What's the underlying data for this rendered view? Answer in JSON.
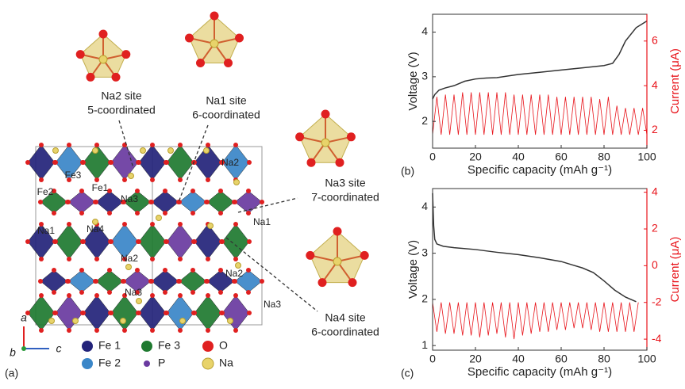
{
  "panel_a": {
    "label": "(a)",
    "sites": [
      {
        "name": "Na2 site",
        "coordination": "5-coordinated"
      },
      {
        "name": "Na1 site",
        "coordination": "6-coordinated"
      },
      {
        "name": "Na3 site",
        "coordination": "7-coordinated"
      },
      {
        "name": "Na4 site",
        "coordination": "6-coordinated"
      }
    ],
    "atom_labels": [
      "Fe3",
      "Fe1",
      "Fe2",
      "Na3",
      "Na2",
      "Na1",
      "Na4",
      "Na1",
      "Na2",
      "Na2",
      "Na3",
      "Na3"
    ],
    "axes": [
      "a",
      "b",
      "c"
    ],
    "legend": [
      "Fe 1",
      "Fe 3",
      "O",
      "Fe 2",
      "P",
      "Na"
    ]
  },
  "chart_data": [
    {
      "type": "line",
      "panel": "(b)",
      "x_label": "Specific capacity (mAh g⁻¹)",
      "y_label": "Voltage (V)",
      "y2_label": "Current (μA)",
      "xlim": [
        0,
        100
      ],
      "xticks": [
        0,
        20,
        40,
        60,
        80,
        100
      ],
      "ylim": [
        1.4,
        4.4
      ],
      "yticks": [
        2,
        3,
        4
      ],
      "y2lim": [
        1.2,
        7.2
      ],
      "y2ticks": [
        2,
        4,
        6
      ],
      "series": [
        {
          "color": "#333333",
          "x": [
            0,
            1,
            3,
            6,
            10,
            15,
            20,
            25,
            30,
            40,
            50,
            60,
            70,
            80,
            84,
            87,
            90,
            95,
            100
          ],
          "values": [
            2.5,
            2.6,
            2.7,
            2.75,
            2.8,
            2.9,
            2.95,
            2.97,
            2.98,
            3.05,
            3.1,
            3.15,
            3.2,
            3.25,
            3.3,
            3.5,
            3.8,
            4.1,
            4.25
          ]
        },
        {
          "color": "#e8141b",
          "axis": "y2",
          "x": [
            0,
            2,
            4,
            6,
            8,
            10,
            12,
            14,
            16,
            18,
            20,
            22,
            24,
            26,
            28,
            30,
            32,
            34,
            36,
            38,
            40,
            42,
            44,
            46,
            48,
            50,
            52,
            54,
            56,
            58,
            60,
            62,
            64,
            66,
            68,
            70,
            72,
            74,
            76,
            78,
            80,
            82,
            84,
            86,
            88,
            90,
            92,
            94,
            96,
            98,
            100
          ],
          "values": [
            1.8,
            3.5,
            1.8,
            3.6,
            1.8,
            3.6,
            1.8,
            3.7,
            1.8,
            3.7,
            1.8,
            3.7,
            1.8,
            3.7,
            1.8,
            3.7,
            1.8,
            3.7,
            1.8,
            3.6,
            1.8,
            3.6,
            1.8,
            3.6,
            1.8,
            3.6,
            1.8,
            3.6,
            1.8,
            3.5,
            1.8,
            3.5,
            1.8,
            3.5,
            1.8,
            3.5,
            1.8,
            3.5,
            1.8,
            3.4,
            1.8,
            3.5,
            1.8,
            3.1,
            1.8,
            3.0,
            1.8,
            3.0,
            1.8,
            3.0,
            1.8
          ]
        }
      ]
    },
    {
      "type": "line",
      "panel": "(c)",
      "x_label": "Specific capacity (mAh g⁻¹)",
      "y_label": "Voltage (V)",
      "y2_label": "Current (μA)",
      "xlim": [
        0,
        100
      ],
      "xticks": [
        0,
        20,
        40,
        60,
        80,
        100
      ],
      "ylim": [
        0.9,
        4.4
      ],
      "yticks": [
        1,
        2,
        3,
        4
      ],
      "y2lim": [
        -4.6,
        4.2
      ],
      "y2ticks": [
        -4,
        -2,
        0,
        2,
        4
      ],
      "series": [
        {
          "color": "#333333",
          "x": [
            0,
            0.5,
            1,
            2,
            5,
            10,
            20,
            30,
            40,
            50,
            60,
            65,
            70,
            75,
            80,
            85,
            90,
            95
          ],
          "values": [
            4.3,
            3.6,
            3.3,
            3.2,
            3.15,
            3.12,
            3.08,
            3.02,
            2.97,
            2.9,
            2.82,
            2.75,
            2.68,
            2.58,
            2.4,
            2.2,
            2.05,
            1.95
          ]
        },
        {
          "color": "#e8141b",
          "axis": "y2",
          "x": [
            0,
            2,
            4,
            6,
            8,
            10,
            12,
            14,
            16,
            18,
            20,
            22,
            24,
            26,
            28,
            30,
            32,
            34,
            36,
            38,
            40,
            42,
            44,
            46,
            48,
            50,
            52,
            54,
            56,
            58,
            60,
            62,
            64,
            66,
            68,
            70,
            72,
            74,
            76,
            78,
            80,
            82,
            84,
            86,
            88,
            90,
            92,
            94,
            96
          ],
          "values": [
            -2,
            -3.6,
            -2,
            -3.7,
            -2,
            -3.7,
            -2,
            -3.8,
            -2,
            -3.8,
            -2,
            -3.9,
            -2,
            -3.8,
            -2,
            -3.7,
            -2,
            -3.9,
            -2,
            -4.0,
            -2,
            -3.8,
            -2,
            -3.7,
            -2,
            -3.6,
            -2,
            -3.6,
            -2,
            -3.5,
            -2,
            -3.5,
            -2,
            -3.4,
            -2,
            -3.4,
            -2,
            -3.5,
            -2,
            -3.6,
            -2,
            -3.6,
            -2,
            -3.6,
            -2,
            -3.6,
            -2,
            -3.6,
            -2
          ]
        }
      ]
    }
  ]
}
